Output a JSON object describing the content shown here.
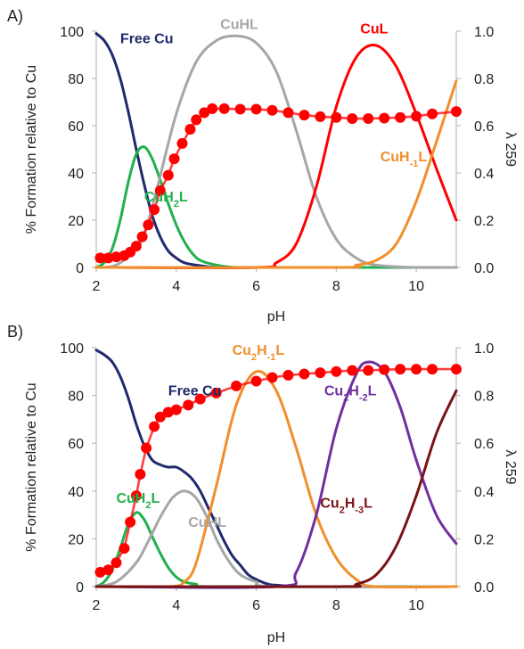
{
  "chart_data": [
    {
      "type": "line",
      "panel_label": "A)",
      "xlabel": "pH",
      "ylabel": "% Formation relative to Cu",
      "y2label": "λ 259",
      "xlim": [
        2,
        11
      ],
      "ylim": [
        0,
        100
      ],
      "y2lim": [
        0,
        1.0
      ],
      "xticks": [
        "2",
        "4",
        "6",
        "8",
        "10"
      ],
      "yticks": [
        "0",
        "20",
        "40",
        "60",
        "80",
        "100"
      ],
      "y2ticks": [
        "0.0",
        "0.2",
        "0.4",
        "0.6",
        "0.8",
        "1.0"
      ],
      "grid": false,
      "series": [
        {
          "name": "Free Cu",
          "color": "#1f2a6e",
          "x": [
            2.0,
            2.2,
            2.4,
            2.6,
            2.8,
            3.0,
            3.2,
            3.4,
            3.6,
            3.8,
            4.0,
            4.2,
            4.5,
            5.0,
            6.0,
            8.0,
            11.0
          ],
          "y": [
            99,
            96,
            90,
            80,
            66,
            50,
            35,
            22,
            13,
            7,
            4,
            2,
            1,
            0,
            0,
            0,
            0
          ]
        },
        {
          "name": "CuH₂L",
          "color": "#22b14c",
          "x": [
            2.0,
            2.2,
            2.4,
            2.6,
            2.8,
            3.0,
            3.2,
            3.4,
            3.6,
            3.8,
            4.0,
            4.2,
            4.4,
            4.6,
            5.0,
            5.5,
            6.0,
            11.0
          ],
          "y": [
            0,
            2,
            8,
            20,
            36,
            48,
            51,
            46,
            37,
            27,
            18,
            11,
            6,
            3,
            1,
            0,
            0,
            0
          ]
        },
        {
          "name": "CuHL",
          "color": "#a6a6a6",
          "x": [
            2.0,
            2.5,
            3.0,
            3.2,
            3.5,
            4.0,
            4.5,
            5.0,
            5.5,
            6.0,
            6.5,
            7.0,
            7.5,
            8.0,
            8.5,
            9.0,
            10.0,
            11.0
          ],
          "y": [
            0,
            1,
            8,
            14,
            32,
            65,
            87,
            96,
            98,
            95,
            83,
            58,
            30,
            12,
            4,
            1,
            0,
            0
          ]
        },
        {
          "name": "CuL",
          "color": "#ff0000",
          "x": [
            2.0,
            6.0,
            6.5,
            7.0,
            7.5,
            8.0,
            8.5,
            9.0,
            9.5,
            10.0,
            10.5,
            11.0
          ],
          "y": [
            0,
            0,
            2,
            10,
            34,
            68,
            89,
            94,
            85,
            65,
            42,
            20
          ]
        },
        {
          "name": "CuH₋₁L",
          "color": "#f28e2b",
          "x": [
            2.0,
            8.0,
            8.5,
            9.0,
            9.5,
            10.0,
            10.5,
            11.0
          ],
          "y": [
            0,
            0,
            1,
            3,
            10,
            28,
            53,
            79
          ]
        },
        {
          "name": "λ 259",
          "color": "#ff0000",
          "axis": "right",
          "markers": true,
          "x": [
            2.1,
            2.3,
            2.5,
            2.7,
            2.85,
            3.0,
            3.15,
            3.3,
            3.45,
            3.6,
            3.8,
            3.95,
            4.15,
            4.35,
            4.5,
            4.7,
            4.9,
            5.2,
            5.6,
            6.0,
            6.4,
            6.8,
            7.2,
            7.6,
            8.0,
            8.4,
            8.8,
            9.2,
            9.6,
            10.0,
            10.4,
            11.0
          ],
          "y": [
            0.04,
            0.04,
            0.045,
            0.05,
            0.065,
            0.09,
            0.13,
            0.18,
            0.245,
            0.325,
            0.39,
            0.46,
            0.525,
            0.585,
            0.625,
            0.655,
            0.672,
            0.672,
            0.67,
            0.67,
            0.665,
            0.655,
            0.645,
            0.638,
            0.635,
            0.63,
            0.63,
            0.632,
            0.635,
            0.64,
            0.65,
            0.66
          ]
        }
      ],
      "labels": [
        {
          "text": "Free Cu",
          "color": "#1f2a6e",
          "x": 2.6,
          "y": 95
        },
        {
          "text": "CuHL",
          "color": "#a6a6a6",
          "x": 5.1,
          "y": 101
        },
        {
          "text": "CuL",
          "color": "#ff0000",
          "x": 8.6,
          "y": 99
        },
        {
          "text": "CuH₂L",
          "color": "#22b14c",
          "x": 3.2,
          "y": 28
        },
        {
          "text": "CuH₋₁L",
          "color": "#f28e2b",
          "x": 9.1,
          "y": 45
        }
      ]
    },
    {
      "type": "line",
      "panel_label": "B)",
      "xlabel": "pH",
      "ylabel": "% Formation relative to Cu",
      "y2label": "λ 259",
      "xlim": [
        2,
        11
      ],
      "ylim": [
        0,
        100
      ],
      "y2lim": [
        0,
        1.0
      ],
      "xticks": [
        "2",
        "4",
        "6",
        "8",
        "10"
      ],
      "yticks": [
        "0",
        "20",
        "40",
        "60",
        "80",
        "100"
      ],
      "y2ticks": [
        "0.0",
        "0.2",
        "0.4",
        "0.6",
        "0.8",
        "1.0"
      ],
      "grid": false,
      "series": [
        {
          "name": "Free Cu",
          "color": "#1f2a6e",
          "x": [
            2.0,
            2.2,
            2.4,
            2.6,
            2.8,
            3.0,
            3.2,
            3.4,
            3.6,
            3.8,
            4.0,
            4.2,
            4.4,
            4.6,
            4.8,
            5.0,
            5.2,
            5.4,
            5.6,
            5.8,
            6.0,
            6.3,
            6.6,
            7.0,
            7.5,
            11.0
          ],
          "y": [
            99,
            97,
            94,
            88,
            79,
            68,
            59,
            53,
            51,
            50,
            50,
            48,
            45,
            40,
            33,
            26,
            19,
            13,
            9,
            5,
            3,
            1,
            0.5,
            0,
            0,
            0
          ]
        },
        {
          "name": "CuH₂L",
          "color": "#22b14c",
          "x": [
            2.0,
            2.2,
            2.4,
            2.6,
            2.8,
            3.0,
            3.2,
            3.4,
            3.6,
            3.8,
            4.0,
            4.2,
            4.5,
            5.0,
            11.0
          ],
          "y": [
            0,
            2,
            7,
            16,
            26,
            31,
            28,
            21,
            14,
            8,
            4,
            2,
            1,
            0,
            0
          ]
        },
        {
          "name": "CuHL",
          "color": "#a6a6a6",
          "x": [
            2.0,
            2.5,
            3.0,
            3.3,
            3.6,
            3.9,
            4.2,
            4.5,
            4.8,
            5.0,
            5.3,
            5.6,
            6.0,
            6.5,
            11.0
          ],
          "y": [
            0,
            2,
            10,
            19,
            29,
            37,
            40,
            37,
            28,
            20,
            11,
            5,
            2,
            0,
            0
          ]
        },
        {
          "name": "Cu₂H₋₁L",
          "color": "#f28e2b",
          "x": [
            2.0,
            3.8,
            4.2,
            4.5,
            5.0,
            5.5,
            6.0,
            6.5,
            7.0,
            7.5,
            8.0,
            8.5,
            9.0,
            11.0
          ],
          "y": [
            0,
            0,
            2,
            10,
            42,
            76,
            90,
            82,
            58,
            30,
            12,
            3,
            0,
            0
          ]
        },
        {
          "name": "Cu₂H₋₂L",
          "color": "#7030a0",
          "x": [
            2.0,
            6.5,
            7.0,
            7.5,
            8.0,
            8.5,
            8.8,
            9.2,
            9.6,
            10.0,
            10.5,
            11.0
          ],
          "y": [
            0,
            0,
            6,
            30,
            66,
            89,
            94,
            90,
            75,
            53,
            30,
            18
          ]
        },
        {
          "name": "Cu₂H₋₃L",
          "color": "#7b1315",
          "x": [
            2.0,
            8.0,
            8.5,
            9.0,
            9.5,
            10.0,
            10.5,
            11.0
          ],
          "y": [
            0,
            0,
            1,
            5,
            17,
            38,
            64,
            82
          ]
        },
        {
          "name": "λ 259",
          "color": "#ff0000",
          "axis": "right",
          "markers": true,
          "x": [
            2.1,
            2.3,
            2.5,
            2.7,
            2.85,
            3.0,
            3.1,
            3.25,
            3.45,
            3.6,
            3.8,
            4.0,
            4.3,
            4.6,
            5.0,
            5.5,
            6.0,
            6.4,
            6.8,
            7.2,
            7.6,
            8.0,
            8.4,
            8.8,
            9.2,
            9.6,
            10.0,
            10.4,
            11.0
          ],
          "y": [
            0.06,
            0.07,
            0.1,
            0.16,
            0.27,
            0.38,
            0.47,
            0.58,
            0.67,
            0.71,
            0.73,
            0.74,
            0.76,
            0.785,
            0.81,
            0.84,
            0.86,
            0.875,
            0.885,
            0.89,
            0.895,
            0.9,
            0.905,
            0.905,
            0.908,
            0.91,
            0.91,
            0.91,
            0.91
          ]
        }
      ],
      "labels": [
        {
          "text": "Free Cu",
          "color": "#1f2a6e",
          "x": 3.8,
          "y": 80
        },
        {
          "text": "CuH₂L",
          "color": "#22b14c",
          "x": 2.5,
          "y": 35
        },
        {
          "text": "CuHL",
          "color": "#a6a6a6",
          "x": 4.3,
          "y": 25
        },
        {
          "text": "Cu₂H₋₁L",
          "color": "#f28e2b",
          "x": 5.4,
          "y": 97
        },
        {
          "text": "Cu₂H₋₂L",
          "color": "#7030a0",
          "x": 7.7,
          "y": 80
        },
        {
          "text": "Cu₂H₋₃L",
          "color": "#7b1315",
          "x": 7.6,
          "y": 33
        }
      ]
    }
  ]
}
